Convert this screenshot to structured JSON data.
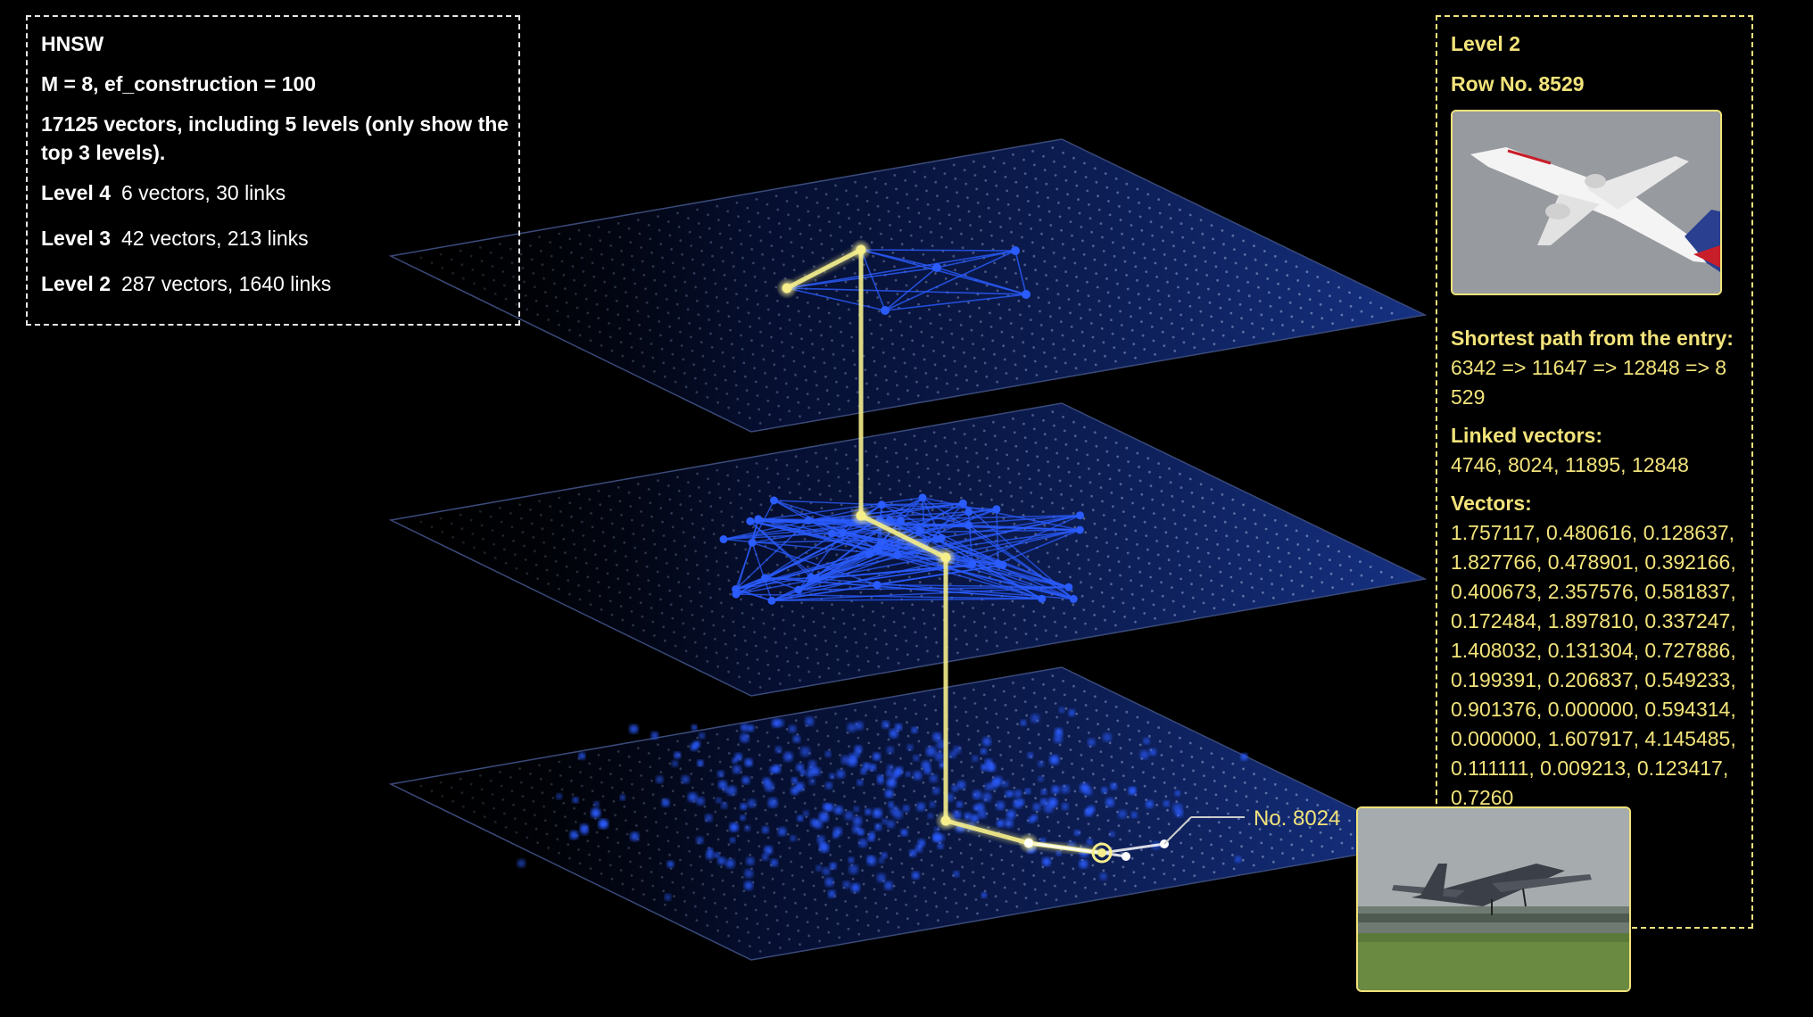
{
  "info": {
    "title": "HNSW",
    "params": "M = 8, ef_construction = 100",
    "description": "17125 vectors, including 5 levels (only show the top 3 levels).",
    "levels": [
      {
        "name": "Level 4",
        "stats": "6 vectors, 30 links"
      },
      {
        "name": "Level 3",
        "stats": "42 vectors, 213 links"
      },
      {
        "name": "Level 2",
        "stats": "287 vectors, 1640 links"
      }
    ]
  },
  "detail": {
    "level": "Level 2",
    "row": "Row No. 8529",
    "path_heading": "Shortest path from the entry:",
    "path": "6342 => 11647 => 12848 => 8529",
    "linked_heading": "Linked vectors:",
    "linked": "4746, 8024, 11895, 12848",
    "vectors_heading": "Vectors:",
    "vectors": "1.757117, 0.480616, 0.128637, 1.827766, 0.478901, 0.392166, 0.400673, 2.357576, 0.581837, 0.172484, 1.897810, 0.337247, 1.408032, 0.131304, 0.727886, 0.199391, 0.206837, 0.549233, 0.901376, 0.000000, 0.594314, 0.000000, 1.607917, 4.145485, 0.111111, 0.009213, 0.123417, 0.7260"
  },
  "callout": {
    "label": "No. 8024"
  },
  "colors": {
    "accent": "#f2e37a",
    "node": "#2a5cff",
    "plane": "#0b1a4a",
    "path": "#f5ee8a"
  },
  "icons": [
    "airplane-photo-thumbnail",
    "airplane-takeoff-thumbnail"
  ]
}
